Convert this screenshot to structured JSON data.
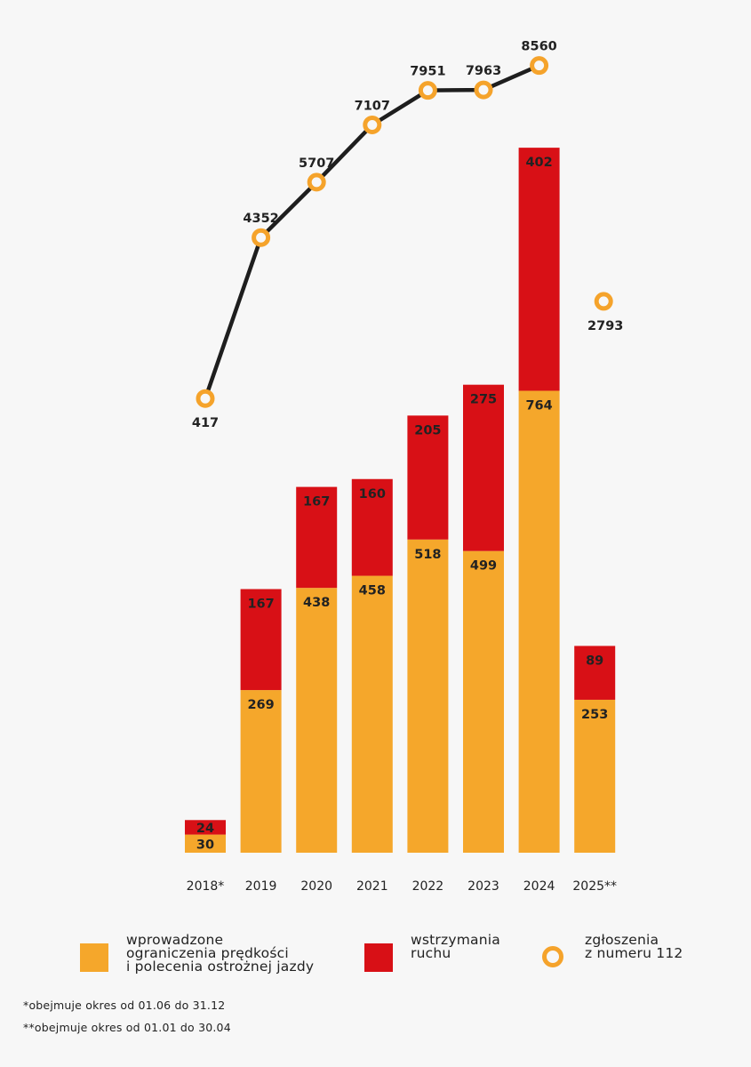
{
  "chart_data": {
    "type": "bar",
    "stacked": true,
    "categories": [
      "2018*",
      "2019",
      "2020",
      "2021",
      "2022",
      "2023",
      "2024",
      "2025**"
    ],
    "series": [
      {
        "name": "wprowadzone ograniczenia prędkości i polecenia ostrożnej jazdy",
        "color": "#f5a72b",
        "values": [
          30,
          269,
          438,
          458,
          518,
          499,
          764,
          253
        ]
      },
      {
        "name": "wstrzymania ruchu",
        "color": "#d81016",
        "values": [
          24,
          167,
          167,
          160,
          205,
          275,
          402,
          89
        ]
      }
    ],
    "line_series": {
      "name": "zgłoszenia z numeru 112",
      "color": "#f5a32b",
      "line_color": "#1e1e1e",
      "values": [
        417,
        4352,
        5707,
        7107,
        7951,
        7963,
        8560,
        2793
      ],
      "connected_points": 7
    },
    "label_color": "#222222"
  },
  "legend": {
    "bars_label": "wprowadzone\nograniczenia prędkości\ni polecenia ostrożnej jazdy",
    "stops_label": "wstrzymania\nruchu",
    "calls_label": "zgłoszenia\nz numeru 112"
  },
  "footnotes": {
    "note1": "*obejmuje okres od 01.06 do 31.12",
    "note2": "**obejmuje okres od 01.01 do 30.04"
  }
}
